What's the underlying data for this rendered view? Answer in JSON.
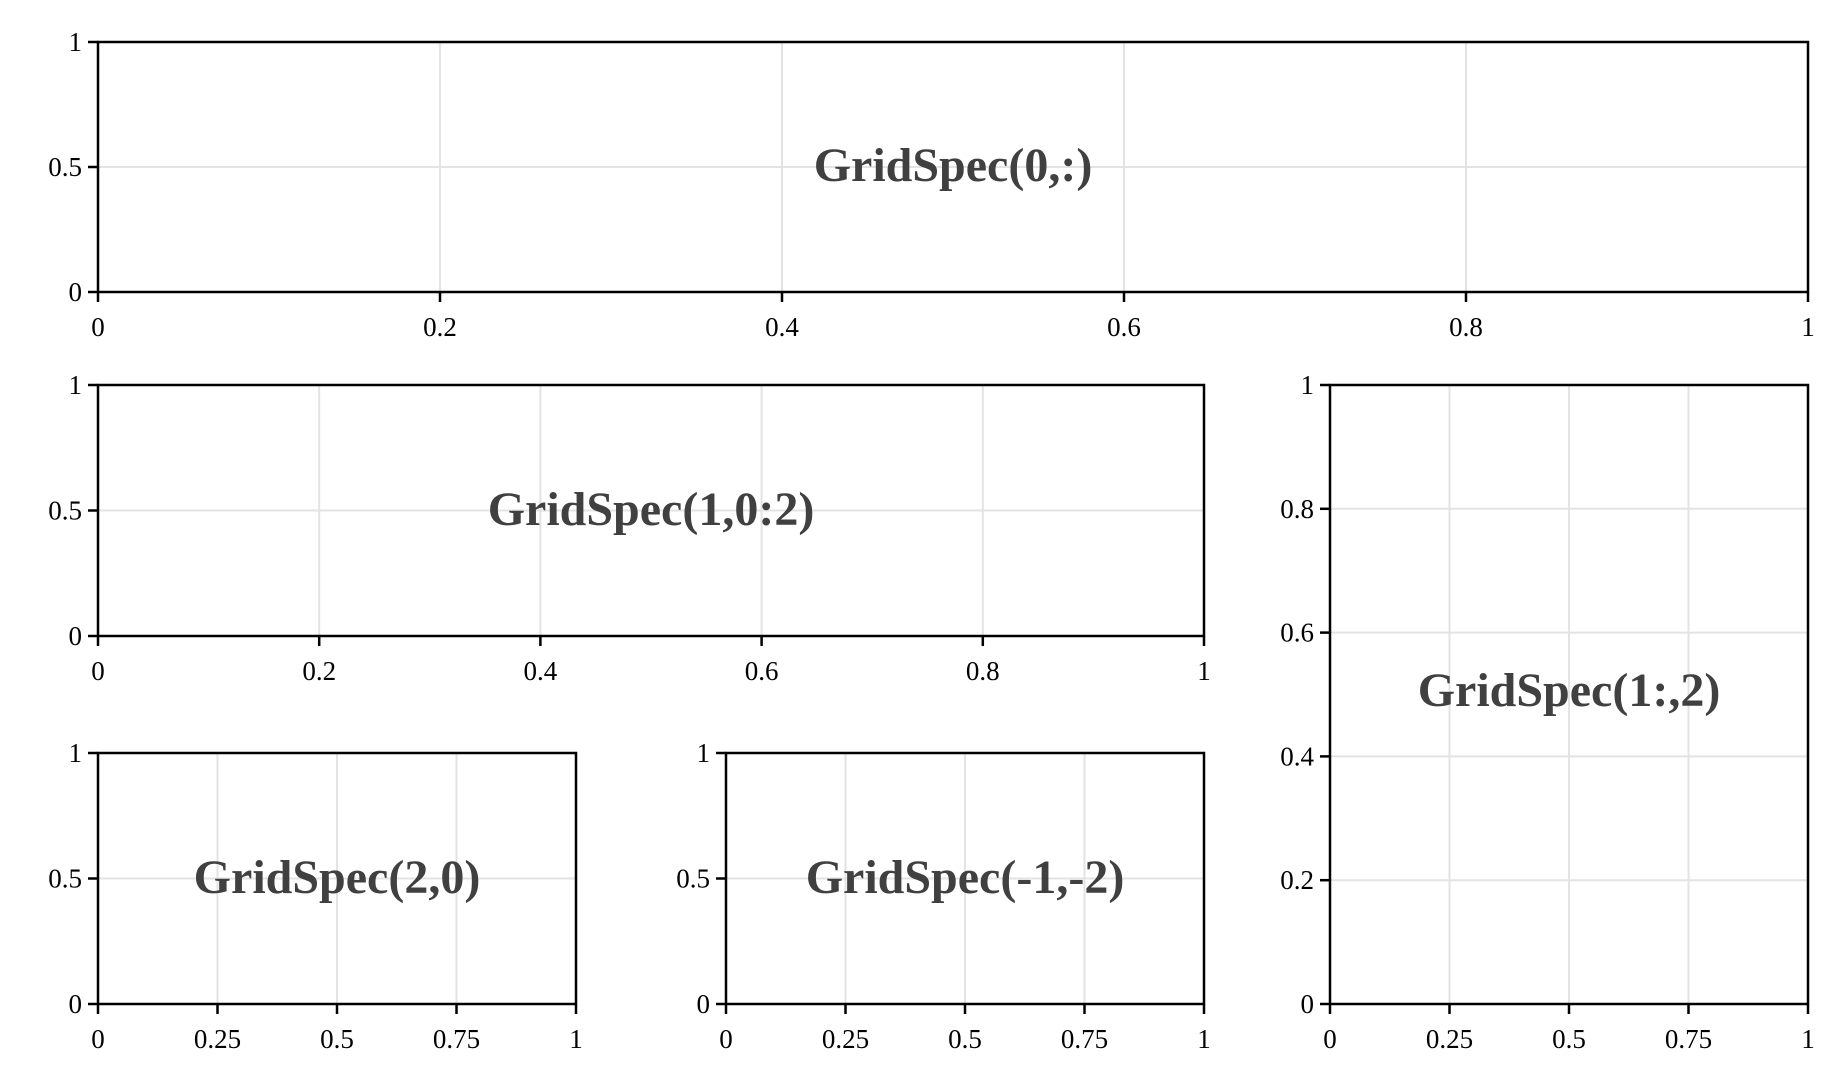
{
  "chart_data": [
    {
      "type": "empty-axes",
      "title": "GridSpec(0,:)",
      "xlim": [
        0,
        1
      ],
      "ylim": [
        0,
        1
      ],
      "x_ticks": [
        0,
        0.2,
        0.4,
        0.6,
        0.8,
        1
      ],
      "x_tick_labels": [
        "0",
        "0.2",
        "0.4",
        "0.6",
        "0.8",
        "1"
      ],
      "y_ticks": [
        0,
        0.5,
        1
      ],
      "y_tick_labels": [
        "0",
        "0.5",
        "1"
      ],
      "grid": true
    },
    {
      "type": "empty-axes",
      "title": "GridSpec(1,0:2)",
      "xlim": [
        0,
        1
      ],
      "ylim": [
        0,
        1
      ],
      "x_ticks": [
        0,
        0.2,
        0.4,
        0.6,
        0.8,
        1
      ],
      "x_tick_labels": [
        "0",
        "0.2",
        "0.4",
        "0.6",
        "0.8",
        "1"
      ],
      "y_ticks": [
        0,
        0.5,
        1
      ],
      "y_tick_labels": [
        "0",
        "0.5",
        "1"
      ],
      "grid": true
    },
    {
      "type": "empty-axes",
      "title": "GridSpec(1:,2)",
      "xlim": [
        0,
        1
      ],
      "ylim": [
        0,
        1
      ],
      "x_ticks": [
        0,
        0.25,
        0.5,
        0.75,
        1
      ],
      "x_tick_labels": [
        "0",
        "0.25",
        "0.5",
        "0.75",
        "1"
      ],
      "y_ticks": [
        0,
        0.2,
        0.4,
        0.6,
        0.8,
        1
      ],
      "y_tick_labels": [
        "0",
        "0.2",
        "0.4",
        "0.6",
        "0.8",
        "1"
      ],
      "grid": true
    },
    {
      "type": "empty-axes",
      "title": "GridSpec(2,0)",
      "xlim": [
        0,
        1
      ],
      "ylim": [
        0,
        1
      ],
      "x_ticks": [
        0,
        0.25,
        0.5,
        0.75,
        1
      ],
      "x_tick_labels": [
        "0",
        "0.25",
        "0.5",
        "0.75",
        "1"
      ],
      "y_ticks": [
        0,
        0.5,
        1
      ],
      "y_tick_labels": [
        "0",
        "0.5",
        "1"
      ],
      "grid": true
    },
    {
      "type": "empty-axes",
      "title": "GridSpec(-1,-2)",
      "xlim": [
        0,
        1
      ],
      "ylim": [
        0,
        1
      ],
      "x_ticks": [
        0,
        0.25,
        0.5,
        0.75,
        1
      ],
      "x_tick_labels": [
        "0",
        "0.25",
        "0.5",
        "0.75",
        "1"
      ],
      "y_ticks": [
        0,
        0.5,
        1
      ],
      "y_tick_labels": [
        "0",
        "0.5",
        "1"
      ],
      "grid": true
    }
  ]
}
